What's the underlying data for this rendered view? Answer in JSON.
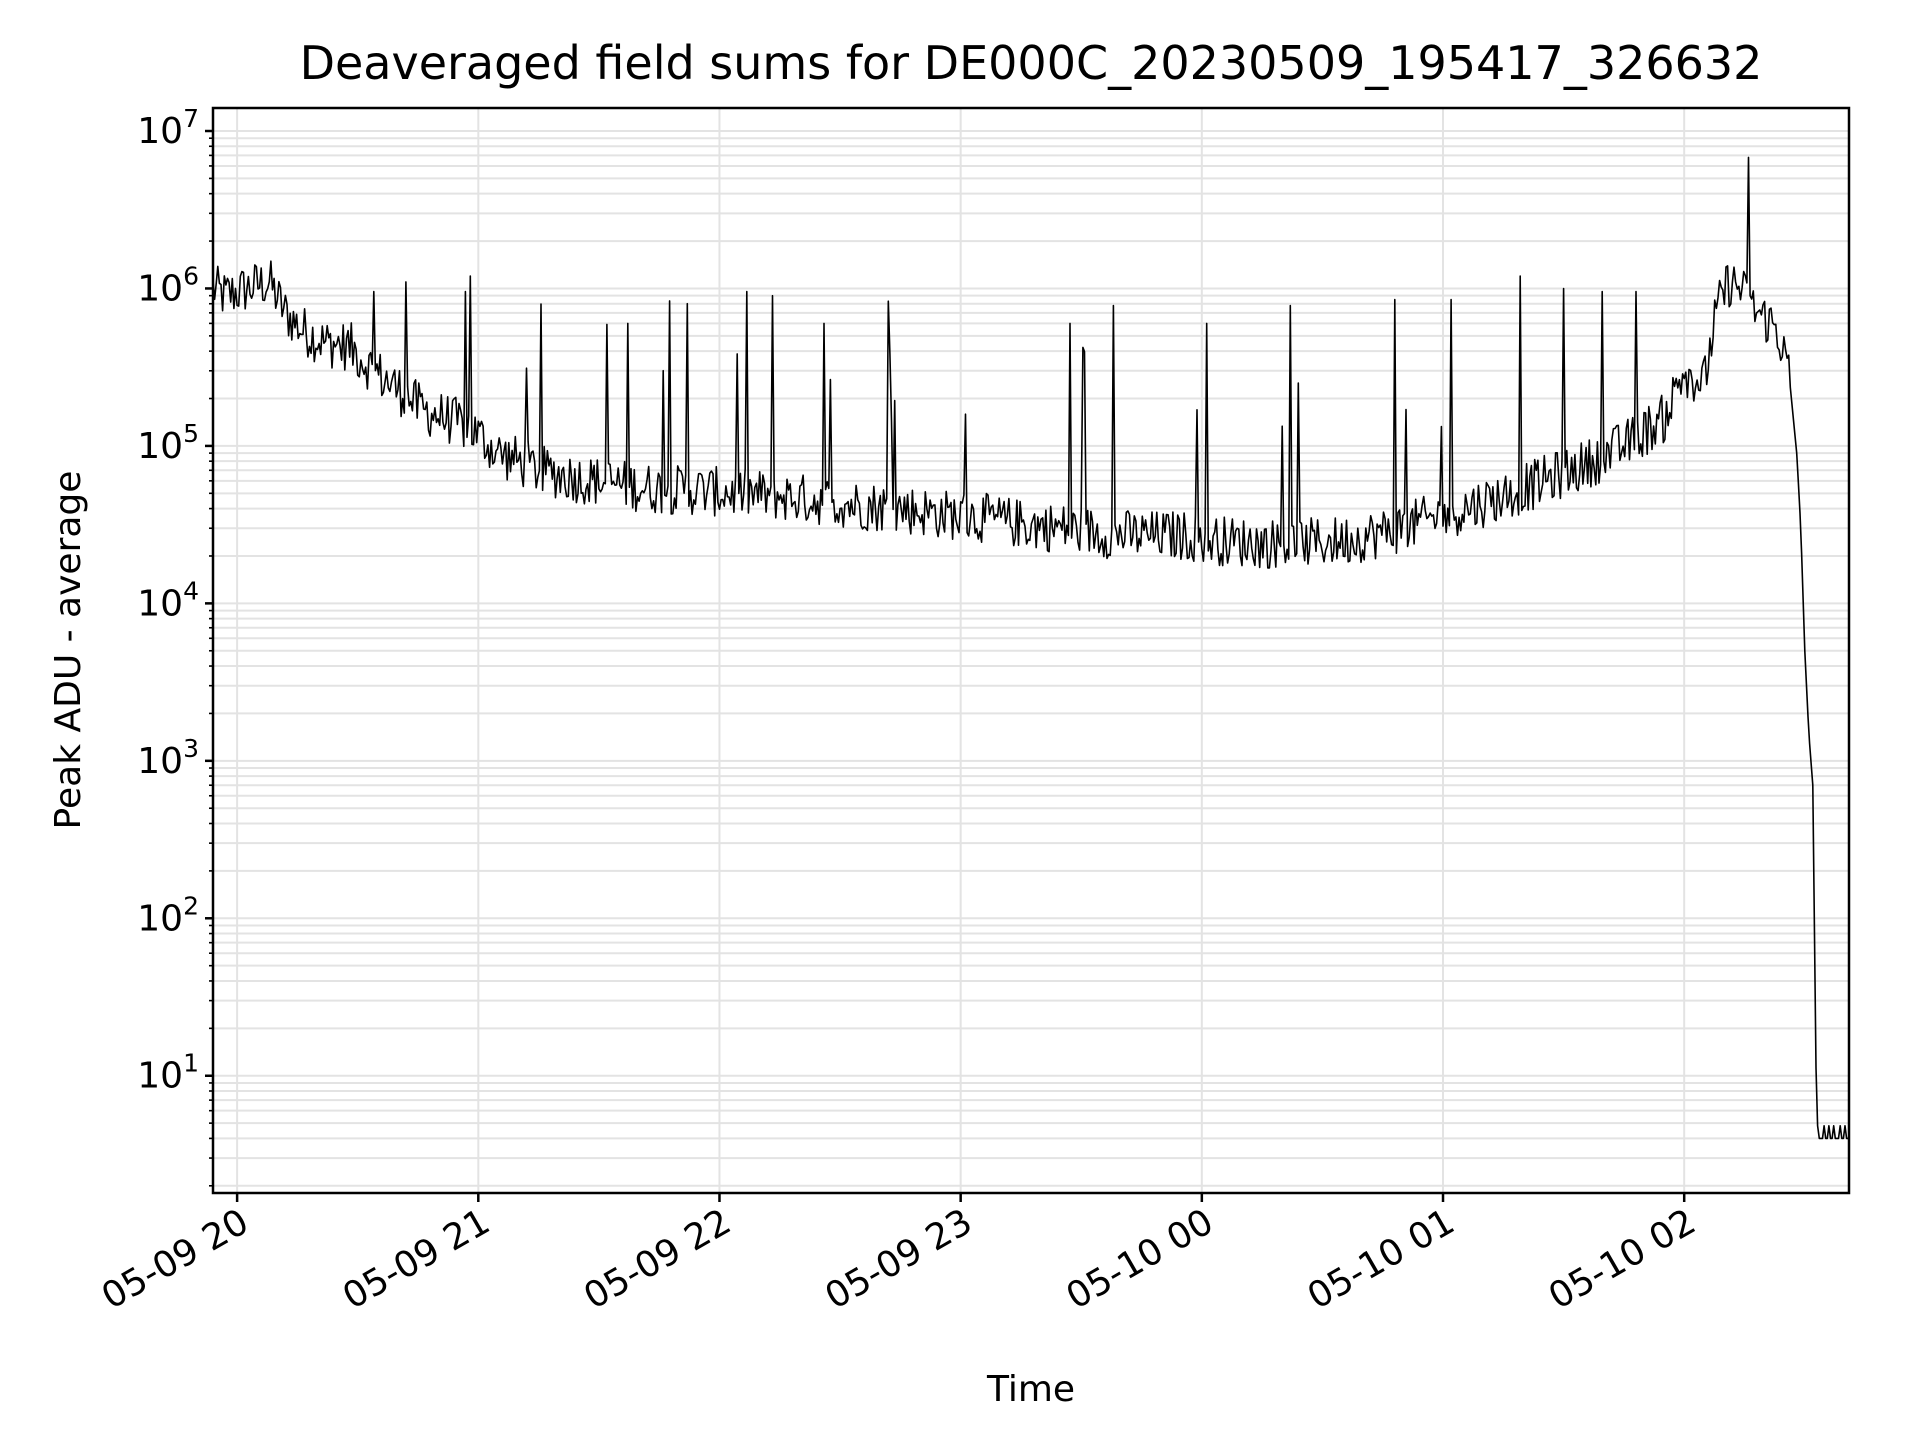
{
  "chart_data": {
    "type": "line",
    "title": "Deaveraged field sums for DE000C_20230509_195417_326632",
    "xlabel": "Time",
    "ylabel": "Peak ADU - average",
    "yscale": "log",
    "ylim": [
      1.8,
      14000000
    ],
    "xlim": [
      "2023-05-09 19:54",
      "2023-05-10 02:41"
    ],
    "grid": true,
    "grid_minor": true,
    "line_color": "#000000",
    "x_ticks": [
      {
        "t": "2023-05-09 20:00",
        "label": "05-09 20"
      },
      {
        "t": "2023-05-09 21:00",
        "label": "05-09 21"
      },
      {
        "t": "2023-05-09 22:00",
        "label": "05-09 22"
      },
      {
        "t": "2023-05-09 23:00",
        "label": "05-09 23"
      },
      {
        "t": "2023-05-10 00:00",
        "label": "05-10 00"
      },
      {
        "t": "2023-05-10 01:00",
        "label": "05-10 01"
      },
      {
        "t": "2023-05-10 02:00",
        "label": "05-10 02"
      }
    ],
    "y_ticks": [
      {
        "value": 10,
        "base": "10",
        "exp": "1"
      },
      {
        "value": 100,
        "base": "10",
        "exp": "2"
      },
      {
        "value": 1000,
        "base": "10",
        "exp": "3"
      },
      {
        "value": 10000,
        "base": "10",
        "exp": "4"
      },
      {
        "value": 100000,
        "base": "10",
        "exp": "5"
      },
      {
        "value": 1000000,
        "base": "10",
        "exp": "6"
      },
      {
        "value": 10000000,
        "base": "10",
        "exp": "7"
      }
    ],
    "series": [
      {
        "x": [
          "2023-05-09 19:54",
          "2023-05-09 19:57",
          "2023-05-09 20:00",
          "2023-05-09 20:05",
          "2023-05-09 20:08",
          "2023-05-09 20:12",
          "2023-05-09 20:16",
          "2023-05-09 20:22",
          "2023-05-09 20:28",
          "2023-05-09 20:34",
          "2023-05-09 20:40",
          "2023-05-09 20:46",
          "2023-05-09 20:52",
          "2023-05-09 20:58",
          "2023-05-09 21:05",
          "2023-05-09 21:15",
          "2023-05-09 21:25",
          "2023-05-09 21:35",
          "2023-05-09 21:45",
          "2023-05-09 21:55",
          "2023-05-09 22:05",
          "2023-05-09 22:15",
          "2023-05-09 22:25",
          "2023-05-09 22:35",
          "2023-05-09 22:45",
          "2023-05-09 22:55",
          "2023-05-09 23:05",
          "2023-05-09 23:15",
          "2023-05-09 23:25",
          "2023-05-09 23:35",
          "2023-05-09 23:45",
          "2023-05-09 23:55",
          "2023-05-10 00:05",
          "2023-05-10 00:15",
          "2023-05-10 00:25",
          "2023-05-10 00:35",
          "2023-05-10 00:45",
          "2023-05-10 00:55",
          "2023-05-10 01:05",
          "2023-05-10 01:15",
          "2023-05-10 01:25",
          "2023-05-10 01:35",
          "2023-05-10 01:45",
          "2023-05-10 01:55",
          "2023-05-10 02:00",
          "2023-05-10 02:05",
          "2023-05-10 02:08",
          "2023-05-10 02:11",
          "2023-05-10 02:14",
          "2023-05-10 02:17",
          "2023-05-10 02:20",
          "2023-05-10 02:23",
          "2023-05-10 02:26",
          "2023-05-10 02:28",
          "2023-05-10 02:29",
          "2023-05-10 02:30",
          "2023-05-10 02:31",
          "2023-05-10 02:32",
          "2023-05-10 02:33",
          "2023-05-10 02:34",
          "2023-05-10 02:41"
        ],
        "y": [
          1000000,
          900000,
          950000,
          1050000,
          1100000,
          700000,
          550000,
          450000,
          430000,
          300000,
          230000,
          170000,
          150000,
          130000,
          90000,
          70000,
          62000,
          57000,
          53000,
          52000,
          50000,
          48000,
          45000,
          42000,
          40000,
          37000,
          35000,
          32000,
          30000,
          28000,
          27000,
          27000,
          25000,
          24000,
          24000,
          25000,
          28000,
          33000,
          40000,
          48000,
          60000,
          75000,
          100000,
          150000,
          300000,
          250000,
          700000,
          1100000,
          1000000,
          750000,
          650000,
          560000,
          300000,
          90000,
          30000,
          5000,
          1500,
          700,
          4,
          4,
          4
        ]
      }
    ],
    "spikes": [
      {
        "t": "2023-05-09 20:42",
        "y": 1100000
      },
      {
        "t": "2023-05-09 20:58",
        "y": 1200000
      },
      {
        "t": "2023-05-09 21:37",
        "y": 600000
      },
      {
        "t": "2023-05-09 21:52",
        "y": 800000
      },
      {
        "t": "2023-05-09 22:13",
        "y": 900000
      },
      {
        "t": "2023-05-09 22:26",
        "y": 600000
      },
      {
        "t": "2023-05-09 22:42",
        "y": 830000
      },
      {
        "t": "2023-05-09 23:27",
        "y": 600000
      },
      {
        "t": "2023-05-09 23:38",
        "y": 780000
      },
      {
        "t": "2023-05-10 00:01",
        "y": 600000
      },
      {
        "t": "2023-05-10 00:22",
        "y": 780000
      },
      {
        "t": "2023-05-10 00:48",
        "y": 850000
      },
      {
        "t": "2023-05-10 01:02",
        "y": 850000
      },
      {
        "t": "2023-05-10 01:19",
        "y": 1200000
      },
      {
        "t": "2023-05-10 01:30",
        "y": 1000000
      },
      {
        "t": "2023-05-10 02:16",
        "y": 6800000
      }
    ]
  }
}
